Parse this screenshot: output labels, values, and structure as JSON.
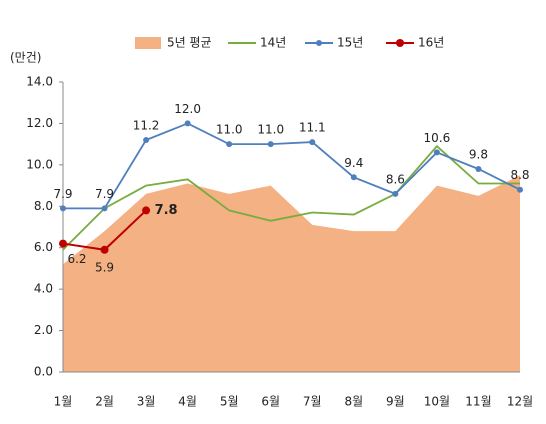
{
  "chart_data": {
    "type": "line",
    "y_axis_label": "(만건)",
    "categories": [
      "1월",
      "2월",
      "3월",
      "4월",
      "5월",
      "6월",
      "7월",
      "8월",
      "9월",
      "10월",
      "11월",
      "12월"
    ],
    "series": [
      {
        "name": "5년 평균",
        "kind": "area",
        "color": "#f4b183",
        "values": [
          5.2,
          6.8,
          8.6,
          9.1,
          8.6,
          9.0,
          7.1,
          6.8,
          6.8,
          9.0,
          8.5,
          9.5
        ]
      },
      {
        "name": "14년",
        "kind": "line",
        "color": "#77ac3f",
        "values": [
          5.9,
          7.9,
          9.0,
          9.3,
          7.8,
          7.3,
          7.7,
          7.6,
          8.6,
          10.9,
          9.1,
          9.1
        ]
      },
      {
        "name": "15년",
        "kind": "line",
        "marker": true,
        "color": "#4f7fbd",
        "values": [
          7.9,
          7.9,
          11.2,
          12.0,
          11.0,
          11.0,
          11.1,
          9.4,
          8.6,
          10.6,
          9.8,
          8.8
        ],
        "value_labels": [
          "7.9",
          "7.9",
          "11.2",
          "12.0",
          "11.0",
          "11.0",
          "11.1",
          "9.4",
          "8.6",
          "10.6",
          "9.8",
          "8.8"
        ]
      },
      {
        "name": "16년",
        "kind": "line",
        "marker": true,
        "color": "#c00000",
        "values": [
          6.2,
          5.9,
          7.8,
          null,
          null,
          null,
          null,
          null,
          null,
          null,
          null,
          null
        ],
        "value_labels": [
          "6.2",
          "5.9",
          "7.8",
          null,
          null,
          null,
          null,
          null,
          null,
          null,
          null,
          null
        ]
      }
    ],
    "ylim": [
      0,
      14
    ],
    "yticks": [
      {
        "value": 0,
        "label": "0.0"
      },
      {
        "value": 2,
        "label": "2.0"
      },
      {
        "value": 4,
        "label": "4.0"
      },
      {
        "value": 6,
        "label": "6.0"
      },
      {
        "value": 8,
        "label": "8.0"
      },
      {
        "value": 10,
        "label": "10.0"
      },
      {
        "value": 12,
        "label": "12.0"
      },
      {
        "value": 14,
        "label": "14.0"
      }
    ],
    "legend": "top"
  }
}
